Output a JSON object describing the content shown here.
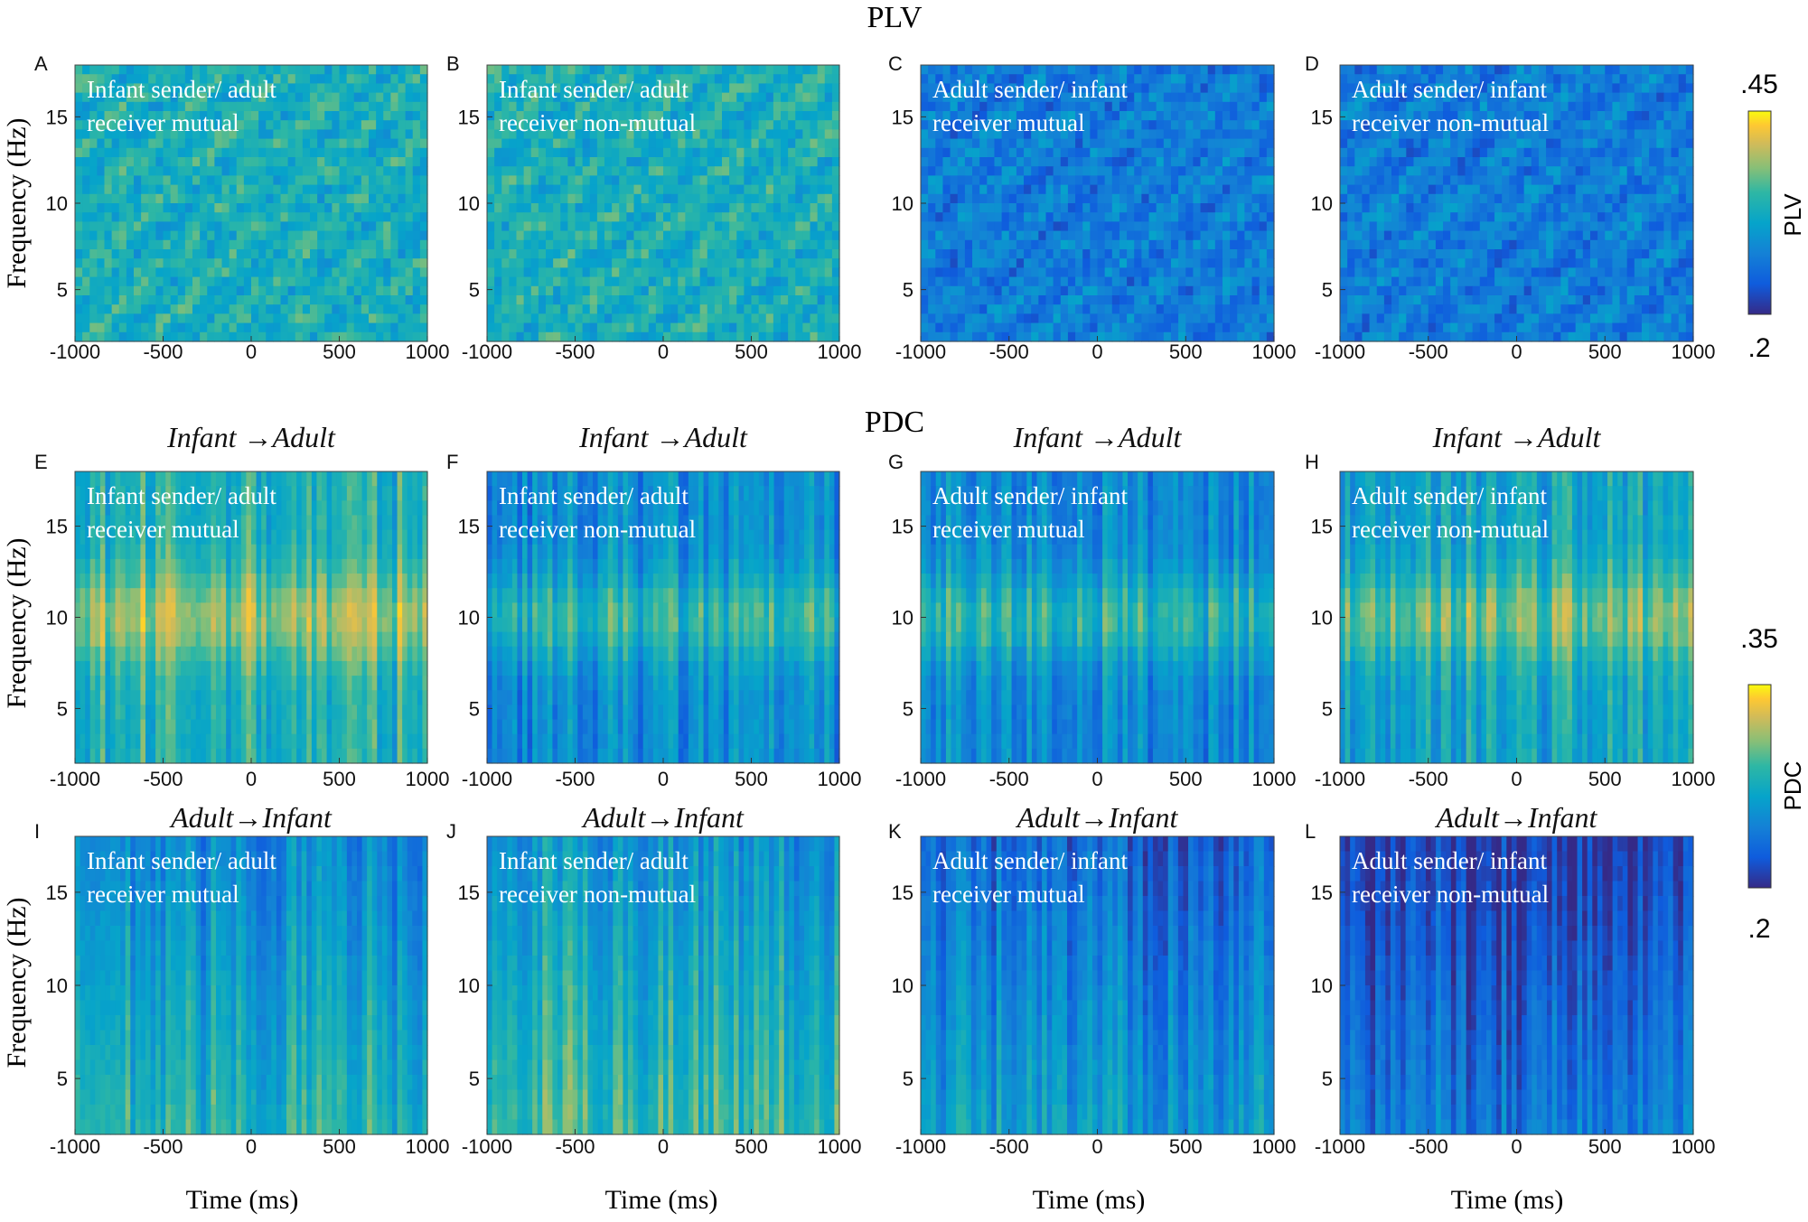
{
  "figure": {
    "row_titles": [
      "PLV",
      "PDC"
    ],
    "y_label": "Frequency (Hz)",
    "x_label": "Time (ms)"
  },
  "colorbars": [
    {
      "label": "PLV",
      "max_label": ".45",
      "min_label": ".2"
    },
    {
      "label": "PDC",
      "max_label": ".35",
      "min_label": ".2"
    }
  ],
  "chart_data": [
    {
      "type": "heatmap",
      "letter": "A",
      "row_title": "PLV",
      "title": "",
      "annotation": [
        "Infant sender/ adult",
        "receiver mutual"
      ],
      "x_ticks": [
        -1000,
        -500,
        0,
        500,
        1000
      ],
      "y_ticks": [
        5,
        10,
        15
      ],
      "xlim": [
        -1000,
        1000
      ],
      "ylim": [
        2,
        18
      ],
      "value_range": [
        0.2,
        0.45
      ],
      "mean_level": 0.33
    },
    {
      "type": "heatmap",
      "letter": "B",
      "row_title": "PLV",
      "title": "",
      "annotation": [
        "Infant sender/ adult",
        "receiver non-mutual"
      ],
      "x_ticks": [
        -1000,
        -500,
        0,
        500,
        1000
      ],
      "y_ticks": [
        5,
        10,
        15
      ],
      "xlim": [
        -1000,
        1000
      ],
      "ylim": [
        2,
        18
      ],
      "value_range": [
        0.2,
        0.45
      ],
      "mean_level": 0.33
    },
    {
      "type": "heatmap",
      "letter": "C",
      "row_title": "PLV",
      "title": "",
      "annotation": [
        "Adult sender/ infant",
        "receiver mutual"
      ],
      "x_ticks": [
        -1000,
        -500,
        0,
        500,
        1000
      ],
      "y_ticks": [
        5,
        10,
        15
      ],
      "xlim": [
        -1000,
        1000
      ],
      "ylim": [
        2,
        18
      ],
      "value_range": [
        0.2,
        0.45
      ],
      "mean_level": 0.27
    },
    {
      "type": "heatmap",
      "letter": "D",
      "row_title": "PLV",
      "title": "",
      "annotation": [
        "Adult sender/ infant",
        "receiver non-mutual"
      ],
      "x_ticks": [
        -1000,
        -500,
        0,
        500,
        1000
      ],
      "y_ticks": [
        5,
        10,
        15
      ],
      "xlim": [
        -1000,
        1000
      ],
      "ylim": [
        2,
        18
      ],
      "value_range": [
        0.2,
        0.45
      ],
      "mean_level": 0.27
    },
    {
      "type": "heatmap",
      "letter": "E",
      "row_title": "PDC",
      "title": "Infant →Adult",
      "annotation": [
        "Infant sender/ adult",
        "receiver mutual"
      ],
      "x_ticks": [
        -1000,
        -500,
        0,
        500,
        1000
      ],
      "y_ticks": [
        5,
        10,
        15
      ],
      "xlim": [
        -1000,
        1000
      ],
      "ylim": [
        2,
        18
      ],
      "value_range": [
        0.2,
        0.35
      ],
      "peak_band_hz": 10,
      "mean_level": 0.29
    },
    {
      "type": "heatmap",
      "letter": "F",
      "row_title": "PDC",
      "title": "Infant →Adult",
      "annotation": [
        "Infant sender/ adult",
        "receiver non-mutual"
      ],
      "x_ticks": [
        -1000,
        -500,
        0,
        500,
        1000
      ],
      "y_ticks": [
        5,
        10,
        15
      ],
      "xlim": [
        -1000,
        1000
      ],
      "ylim": [
        2,
        18
      ],
      "value_range": [
        0.2,
        0.35
      ],
      "peak_band_hz": 10,
      "mean_level": 0.26
    },
    {
      "type": "heatmap",
      "letter": "G",
      "row_title": "PDC",
      "title": "Infant →Adult",
      "annotation": [
        "Adult sender/ infant",
        "receiver mutual"
      ],
      "x_ticks": [
        -1000,
        -500,
        0,
        500,
        1000
      ],
      "y_ticks": [
        5,
        10,
        15
      ],
      "xlim": [
        -1000,
        1000
      ],
      "ylim": [
        2,
        18
      ],
      "value_range": [
        0.2,
        0.35
      ],
      "peak_band_hz": 10,
      "mean_level": 0.26
    },
    {
      "type": "heatmap",
      "letter": "H",
      "row_title": "PDC",
      "title": "Infant →Adult",
      "annotation": [
        "Adult sender/ infant",
        "receiver non-mutual"
      ],
      "x_ticks": [
        -1000,
        -500,
        0,
        500,
        1000
      ],
      "y_ticks": [
        5,
        10,
        15
      ],
      "xlim": [
        -1000,
        1000
      ],
      "ylim": [
        2,
        18
      ],
      "value_range": [
        0.2,
        0.35
      ],
      "peak_band_hz": 10,
      "mean_level": 0.28
    },
    {
      "type": "heatmap",
      "letter": "I",
      "row_title": "PDC",
      "title": "Adult→Infant",
      "annotation": [
        "Infant sender/ adult",
        "receiver mutual"
      ],
      "x_ticks": [
        -1000,
        -500,
        0,
        500,
        1000
      ],
      "y_ticks": [
        5,
        10,
        15
      ],
      "xlim": [
        -1000,
        1000
      ],
      "ylim": [
        2,
        18
      ],
      "value_range": [
        0.2,
        0.35
      ],
      "mean_level": 0.26
    },
    {
      "type": "heatmap",
      "letter": "J",
      "row_title": "PDC",
      "title": "Adult→Infant",
      "annotation": [
        "Infant sender/ adult",
        "receiver non-mutual"
      ],
      "x_ticks": [
        -1000,
        -500,
        0,
        500,
        1000
      ],
      "y_ticks": [
        5,
        10,
        15
      ],
      "xlim": [
        -1000,
        1000
      ],
      "ylim": [
        2,
        18
      ],
      "value_range": [
        0.2,
        0.35
      ],
      "mean_level": 0.27
    },
    {
      "type": "heatmap",
      "letter": "K",
      "row_title": "PDC",
      "title": "Adult→Infant",
      "annotation": [
        "Adult sender/ infant",
        "receiver mutual"
      ],
      "x_ticks": [
        -1000,
        -500,
        0,
        500,
        1000
      ],
      "y_ticks": [
        5,
        10,
        15
      ],
      "xlim": [
        -1000,
        1000
      ],
      "ylim": [
        2,
        18
      ],
      "value_range": [
        0.2,
        0.35
      ],
      "mean_level": 0.24
    },
    {
      "type": "heatmap",
      "letter": "L",
      "row_title": "PDC",
      "title": "Adult→Infant",
      "annotation": [
        "Adult sender/ infant",
        "receiver non-mutual"
      ],
      "x_ticks": [
        -1000,
        -500,
        0,
        500,
        1000
      ],
      "y_ticks": [
        5,
        10,
        15
      ],
      "xlim": [
        -1000,
        1000
      ],
      "ylim": [
        2,
        18
      ],
      "value_range": [
        0.2,
        0.35
      ],
      "mean_level": 0.22
    }
  ]
}
